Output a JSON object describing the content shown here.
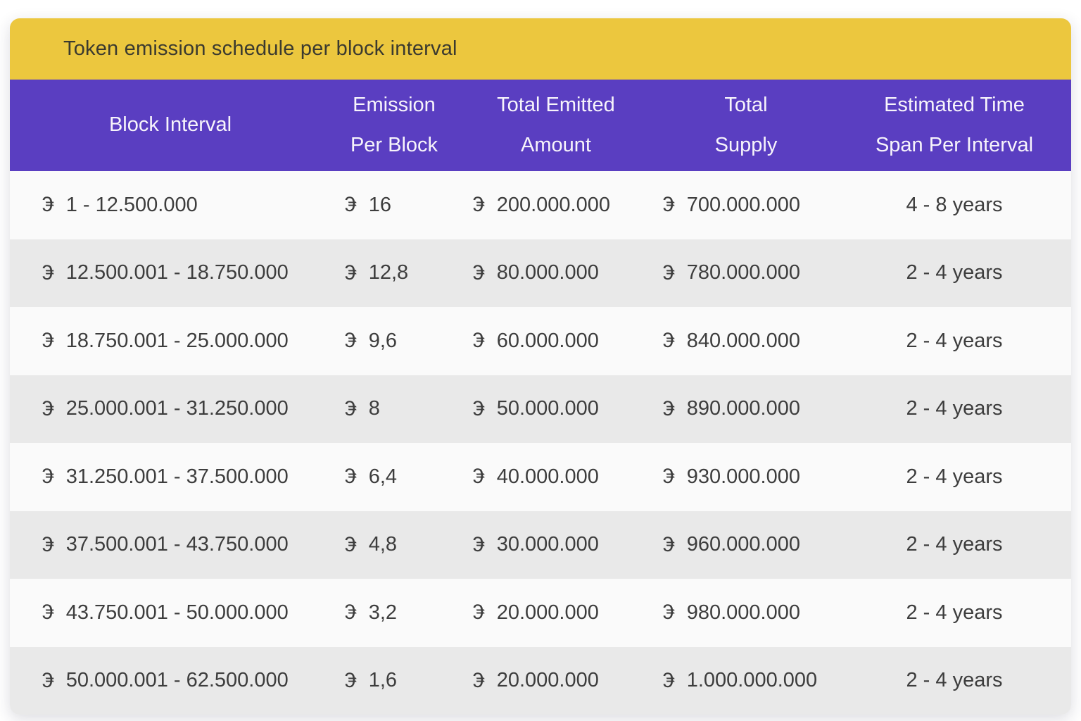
{
  "title": "Token emission schedule per block interval",
  "token_symbol": "€",
  "colors": {
    "title_bar_bg": "#ecc73e",
    "title_text": "#3b3a2f",
    "header_bg": "#5a3ec1",
    "header_text": "#ffffff",
    "row_light": "#fafafa",
    "row_dark": "#e9e9e9",
    "body_text": "#3d3d3d"
  },
  "chart_data": {
    "type": "table",
    "title": "Token emission schedule per block interval",
    "columns": [
      "Block Interval",
      "Emission\nPer Block",
      "Total Emitted\nAmount",
      "Total\nSupply",
      "Estimated Time\nSpan Per Interval"
    ],
    "rows": [
      {
        "block_interval": "1 - 12.500.000",
        "emission_per_block": "16",
        "total_emitted_amount": "200.000.000",
        "total_supply": "700.000.000",
        "time_span": "4 - 8 years"
      },
      {
        "block_interval": "12.500.001 - 18.750.000",
        "emission_per_block": "12,8",
        "total_emitted_amount": "80.000.000",
        "total_supply": "780.000.000",
        "time_span": "2 - 4 years"
      },
      {
        "block_interval": "18.750.001 - 25.000.000",
        "emission_per_block": "9,6",
        "total_emitted_amount": "60.000.000",
        "total_supply": "840.000.000",
        "time_span": "2 - 4 years"
      },
      {
        "block_interval": "25.000.001 - 31.250.000",
        "emission_per_block": "8",
        "total_emitted_amount": "50.000.000",
        "total_supply": "890.000.000",
        "time_span": "2 - 4 years"
      },
      {
        "block_interval": "31.250.001 - 37.500.000",
        "emission_per_block": "6,4",
        "total_emitted_amount": "40.000.000",
        "total_supply": "930.000.000",
        "time_span": "2 - 4 years"
      },
      {
        "block_interval": "37.500.001 - 43.750.000",
        "emission_per_block": "4,8",
        "total_emitted_amount": "30.000.000",
        "total_supply": "960.000.000",
        "time_span": "2 - 4 years"
      },
      {
        "block_interval": "43.750.001 - 50.000.000",
        "emission_per_block": "3,2",
        "total_emitted_amount": "20.000.000",
        "total_supply": "980.000.000",
        "time_span": "2 - 4 years"
      },
      {
        "block_interval": "50.000.001 - 62.500.000",
        "emission_per_block": "1,6",
        "total_emitted_amount": "20.000.000",
        "total_supply": "1.000.000.000",
        "time_span": "2 - 4 years"
      }
    ]
  }
}
